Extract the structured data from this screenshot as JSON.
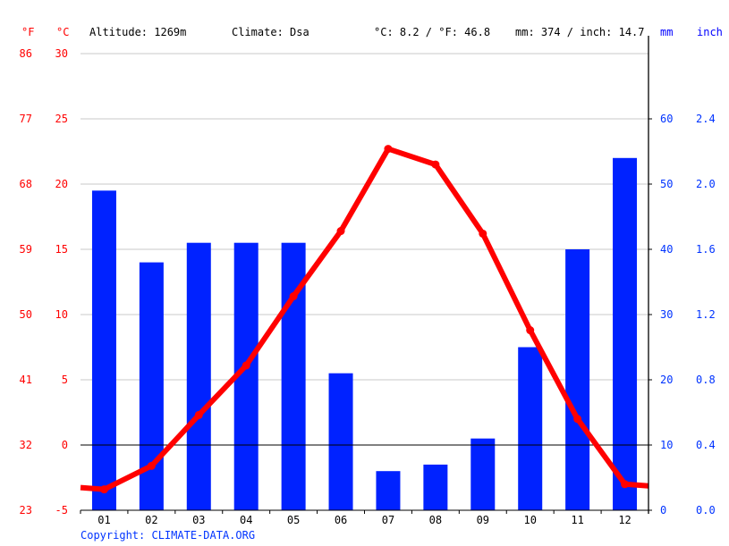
{
  "header": {
    "unit_f": "°F",
    "unit_c": "°C",
    "altitude": "Altitude: 1269m",
    "climate": "Climate: Dsa",
    "avg_temp": "°C: 8.2 / °F: 46.8",
    "precip_total": "mm: 374 / inch: 14.7",
    "unit_mm": "mm",
    "unit_inch": "inch"
  },
  "colors": {
    "temperature_line": "#ff0000",
    "precip_bar": "#0022ff",
    "axis_label_temp": "#ff0000",
    "axis_label_precip": "#0033ff",
    "grid": "#c8c8c8",
    "axis": "#000000"
  },
  "copyright": "Copyright: CLIMATE-DATA.ORG",
  "chart_data": {
    "type": "bar+line",
    "title": "",
    "categories": [
      "01",
      "02",
      "03",
      "04",
      "05",
      "06",
      "07",
      "08",
      "09",
      "10",
      "11",
      "12"
    ],
    "series": [
      {
        "name": "Precipitation (mm)",
        "type": "bar",
        "axis": "right",
        "values": [
          49,
          38,
          41,
          41,
          41,
          21,
          6,
          7,
          11,
          25,
          40,
          54
        ]
      },
      {
        "name": "Temperature (°C)",
        "type": "line",
        "axis": "left",
        "values": [
          -3.4,
          -1.6,
          2.3,
          6.1,
          11.4,
          16.4,
          22.7,
          21.5,
          16.2,
          8.8,
          2.0,
          -3.0
        ]
      }
    ],
    "y_left": {
      "label": "°C",
      "ylim": [
        -5,
        30
      ],
      "ticks": [
        -5,
        0,
        5,
        10,
        15,
        20,
        25,
        30
      ],
      "tick_labels_c": [
        "-5",
        "0",
        "5",
        "10",
        "15",
        "20",
        "25",
        "30"
      ],
      "tick_labels_f": [
        "23",
        "32",
        "41",
        "50",
        "59",
        "68",
        "77",
        "86"
      ]
    },
    "y_right": {
      "label": "mm",
      "ylim": [
        0,
        70
      ],
      "ticks": [
        0,
        10,
        20,
        30,
        40,
        50,
        60
      ],
      "tick_labels_mm": [
        "0",
        "10",
        "20",
        "30",
        "40",
        "50",
        "60"
      ],
      "tick_labels_inch": [
        "0.0",
        "0.4",
        "0.8",
        "1.2",
        "1.6",
        "2.0",
        "2.4"
      ]
    },
    "xlabel": "",
    "grid": true,
    "legend": "none"
  }
}
